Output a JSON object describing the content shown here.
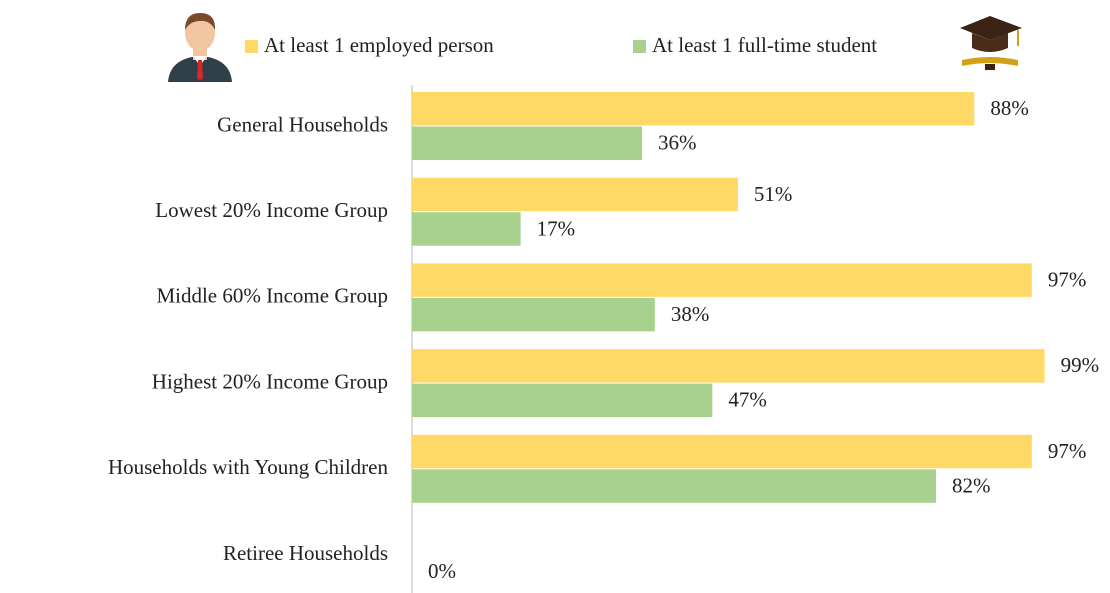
{
  "chart_data": {
    "type": "hbar",
    "categories": [
      "General Households",
      "Lowest 20% Income Group",
      "Middle 60% Income Group",
      "Highest 20% Income Group",
      "Households with Young Children",
      "Retiree Households"
    ],
    "series": [
      {
        "name": "At least 1 employed person",
        "color": "#FFD966",
        "values": [
          88,
          51,
          97,
          99,
          97,
          null
        ],
        "value_labels": [
          "88%",
          "51%",
          "97%",
          "99%",
          "97%",
          null
        ]
      },
      {
        "name": "At least 1 full-time student",
        "color": "#A9D18E",
        "values": [
          36,
          17,
          38,
          47,
          82,
          0
        ],
        "value_labels": [
          "36%",
          "17%",
          "38%",
          "47%",
          "82%",
          "0%"
        ]
      }
    ],
    "xlim": [
      0,
      100
    ]
  }
}
